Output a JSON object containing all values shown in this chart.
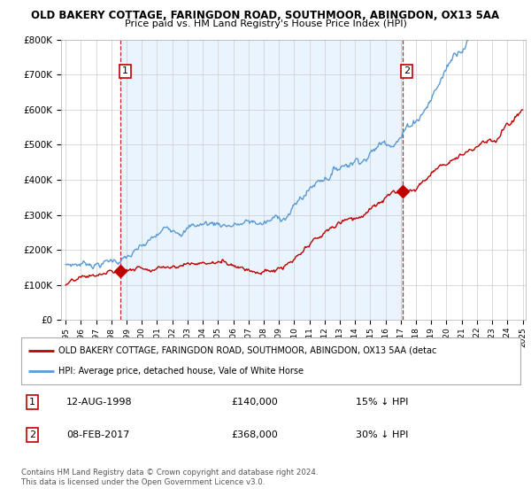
{
  "title1": "OLD BAKERY COTTAGE, FARINGDON ROAD, SOUTHMOOR, ABINGDON, OX13 5AA",
  "title2": "Price paid vs. HM Land Registry's House Price Index (HPI)",
  "legend_line1": "OLD BAKERY COTTAGE, FARINGDON ROAD, SOUTHMOOR, ABINGDON, OX13 5AA (detac",
  "legend_line2": "HPI: Average price, detached house, Vale of White Horse",
  "annotation1_label": "1",
  "annotation1_date": "12-AUG-1998",
  "annotation1_price": "£140,000",
  "annotation1_hpi": "15% ↓ HPI",
  "annotation2_label": "2",
  "annotation2_date": "08-FEB-2017",
  "annotation2_price": "£368,000",
  "annotation2_hpi": "30% ↓ HPI",
  "footer": "Contains HM Land Registry data © Crown copyright and database right 2024.\nThis data is licensed under the Open Government Licence v3.0.",
  "hpi_color": "#5b9bd5",
  "price_color": "#c00000",
  "marker1_year": 1998.62,
  "marker1_value": 140000,
  "marker2_year": 2017.1,
  "marker2_value": 368000,
  "ylim": [
    0,
    800000
  ],
  "xlim_start": 1995,
  "xlim_end": 2025,
  "shade_color": "#ddeeff",
  "background_color": "#ffffff",
  "grid_color": "#cccccc"
}
